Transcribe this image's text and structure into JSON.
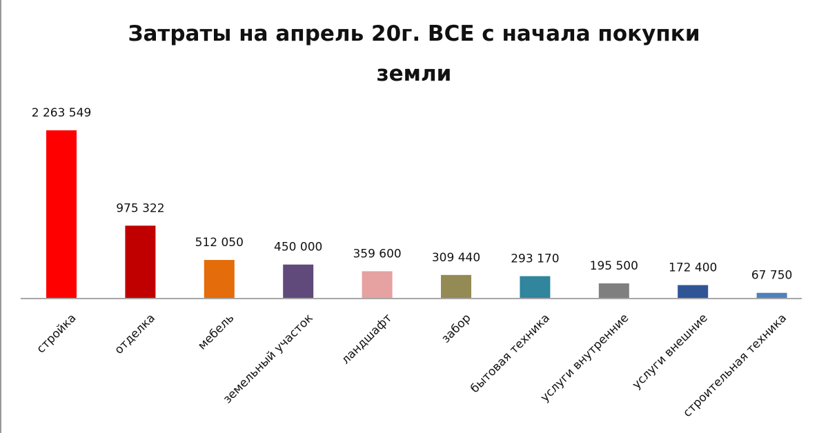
{
  "chart_data": {
    "type": "bar",
    "title": "Затраты на апрель 20г. ВСЕ с начала покупки земли",
    "categories": [
      "стройка",
      "отделка",
      "мебель",
      "земельный участок",
      "ландшафт",
      "забор",
      "бытовая техника",
      "услуги внутренние",
      "услуги внешние",
      "строительная техника"
    ],
    "values": [
      2263549,
      975322,
      512050,
      450000,
      359600,
      309440,
      293170,
      195500,
      172400,
      67750
    ],
    "value_labels": [
      "2 263 549",
      "975 322",
      "512 050",
      "450 000",
      "359 600",
      "309 440",
      "293 170",
      "195 500",
      "172 400",
      "67 750"
    ],
    "colors": [
      "#ff0000",
      "#c00000",
      "#e46c0a",
      "#604a7b",
      "#e6a1a1",
      "#948a54",
      "#31859c",
      "#7f7f7f",
      "#2f5597",
      "#4f81bd"
    ]
  }
}
